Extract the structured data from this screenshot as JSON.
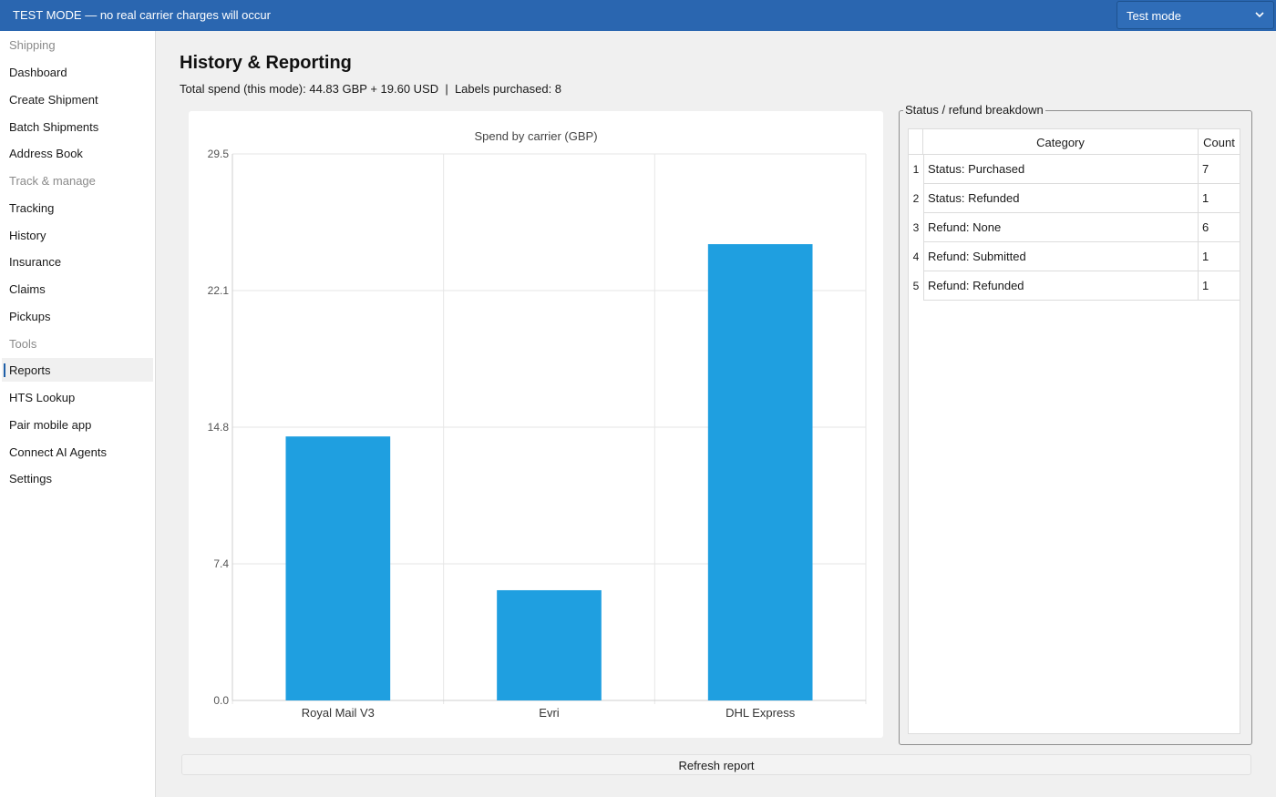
{
  "banner": {
    "text": "TEST MODE — no real carrier charges will occur"
  },
  "mode_select": {
    "value": "Test mode",
    "icon": "chevron-down-icon"
  },
  "sidebar": {
    "items": [
      {
        "label": "Shipping",
        "type": "section"
      },
      {
        "label": "Dashboard",
        "type": "item"
      },
      {
        "label": "Create Shipment",
        "type": "item"
      },
      {
        "label": "Batch Shipments",
        "type": "item"
      },
      {
        "label": "Address Book",
        "type": "item"
      },
      {
        "label": "Track & manage",
        "type": "section"
      },
      {
        "label": "Tracking",
        "type": "item"
      },
      {
        "label": "History",
        "type": "item"
      },
      {
        "label": "Insurance",
        "type": "item"
      },
      {
        "label": "Claims",
        "type": "item"
      },
      {
        "label": "Pickups",
        "type": "item"
      },
      {
        "label": "Tools",
        "type": "section"
      },
      {
        "label": "Reports",
        "type": "item",
        "active": true
      },
      {
        "label": "HTS Lookup",
        "type": "item"
      },
      {
        "label": "Pair mobile app",
        "type": "item"
      },
      {
        "label": "Connect AI Agents",
        "type": "item"
      },
      {
        "label": "Settings",
        "type": "item"
      }
    ]
  },
  "page": {
    "title": "History & Reporting",
    "summary": "Total spend (this mode): 44.83 GBP + 19.60 USD  |  Labels purchased: 8"
  },
  "chart_data": {
    "type": "bar",
    "title": "Spend by carrier (GBP)",
    "categories": [
      "Royal Mail V3",
      "Evri",
      "DHL Express"
    ],
    "values": [
      14.25,
      5.95,
      24.63
    ],
    "ylim": [
      0,
      29.5
    ],
    "yticks": [
      "0.0",
      "7.4",
      "14.8",
      "22.1",
      "29.5"
    ],
    "xlabel": "",
    "ylabel": "",
    "grid": true,
    "bar_color": "#1f9fe0"
  },
  "breakdown": {
    "title": "Status / refund breakdown",
    "columns": [
      "Category",
      "Count"
    ],
    "rows": [
      {
        "num": "1",
        "category": "Status: Purchased",
        "count": "7"
      },
      {
        "num": "2",
        "category": "Status: Refunded",
        "count": "1"
      },
      {
        "num": "3",
        "category": "Refund: None",
        "count": "6"
      },
      {
        "num": "4",
        "category": "Refund: Submitted",
        "count": "1"
      },
      {
        "num": "5",
        "category": "Refund: Refunded",
        "count": "1"
      }
    ]
  },
  "refresh_button": {
    "label": "Refresh report"
  },
  "colors": {
    "banner": "#2a66b0",
    "accent": "#1f5fa8",
    "bar": "#1f9fe0"
  }
}
